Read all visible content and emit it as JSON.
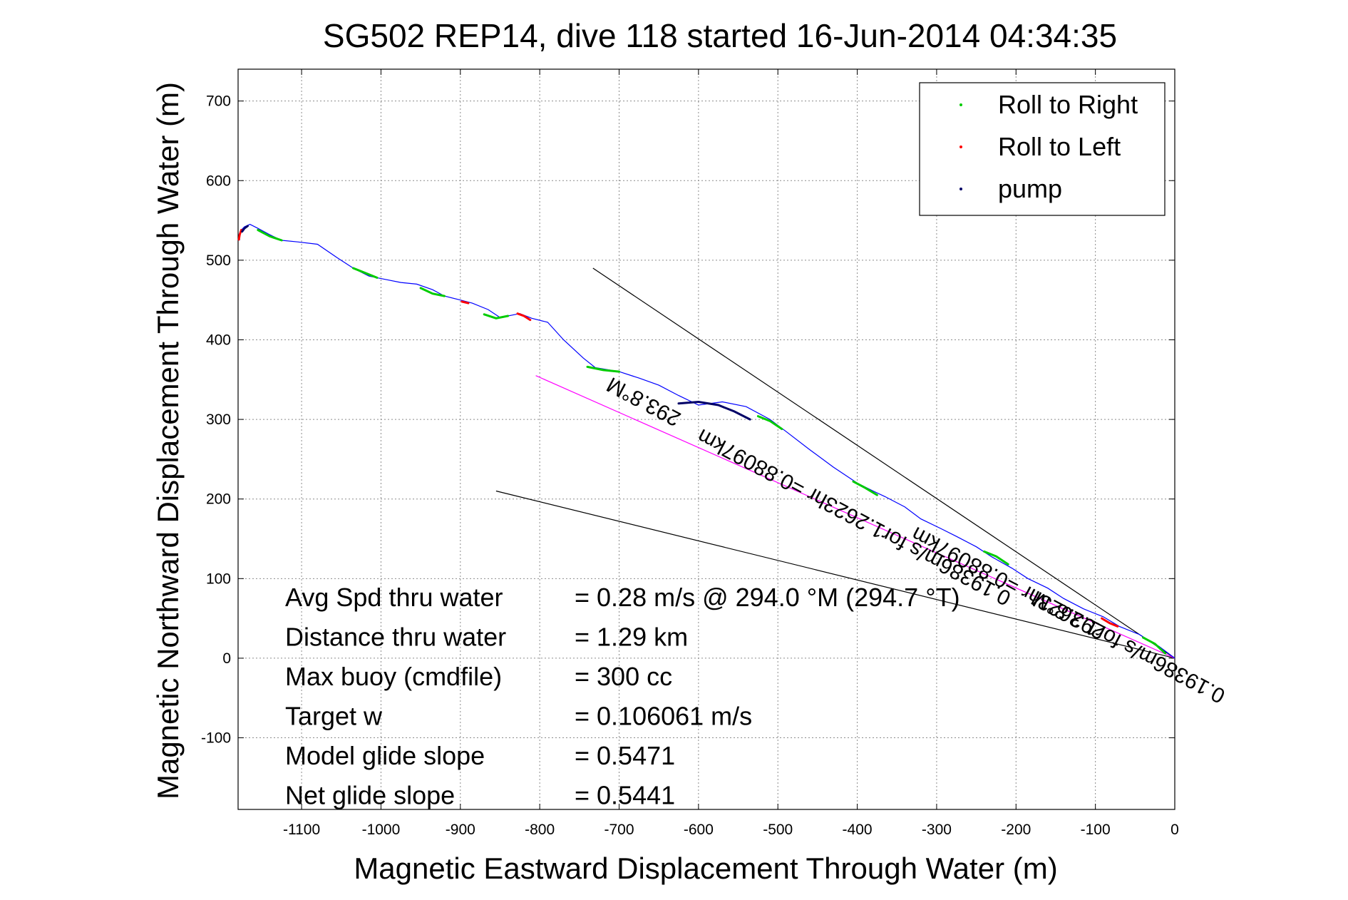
{
  "chart_data": {
    "type": "line",
    "title": "SG502 REP14, dive 118 started 16-Jun-2014 04:34:35",
    "xlabel": "Magnetic Eastward Displacement Through Water (m)",
    "ylabel": "Magnetic Northward Displacement Through Water (m)",
    "xlim": [
      -1180,
      0
    ],
    "ylim": [
      -190,
      740
    ],
    "xticks": [
      -1100,
      -1000,
      -900,
      -800,
      -700,
      -600,
      -500,
      -400,
      -300,
      -200,
      -100,
      0
    ],
    "yticks": [
      -100,
      0,
      100,
      200,
      300,
      400,
      500,
      600,
      700
    ],
    "grid": true,
    "legend_position": "top-right",
    "legend": [
      {
        "label": "Roll to Right",
        "color": "#00cc00"
      },
      {
        "label": "Roll to Left",
        "color": "#ff0000"
      },
      {
        "label": "pump",
        "color": "#000066"
      }
    ],
    "track": {
      "color": "#0000ff",
      "x": [
        0,
        -20,
        -45,
        -70,
        -90,
        -115,
        -140,
        -160,
        -185,
        -205,
        -230,
        -250,
        -275,
        -295,
        -320,
        -340,
        -365,
        -380,
        -400,
        -430,
        -460,
        -490,
        -510,
        -540,
        -570,
        -600,
        -625,
        -650,
        -675,
        -700,
        -730,
        -745,
        -770,
        -790,
        -810,
        -825,
        -850,
        -865,
        -885,
        -900,
        -920,
        -935,
        -955,
        -975,
        -995,
        -1015,
        -1035,
        -1055,
        -1080,
        -1105,
        -1125,
        -1140,
        -1155,
        -1165,
        -1172,
        -1176,
        -1179,
        -1178
      ],
      "y": [
        0,
        15,
        30,
        40,
        52,
        62,
        75,
        88,
        100,
        113,
        127,
        140,
        153,
        163,
        175,
        190,
        203,
        210,
        220,
        240,
        262,
        285,
        300,
        316,
        322,
        318,
        330,
        343,
        352,
        360,
        365,
        377,
        400,
        422,
        427,
        433,
        428,
        438,
        446,
        450,
        455,
        463,
        470,
        472,
        476,
        480,
        490,
        503,
        520,
        523,
        525,
        532,
        540,
        545,
        542,
        538,
        532,
        525
      ]
    },
    "roll_right_segments": [
      {
        "x": [
          -12,
          -25,
          -40
        ],
        "y": [
          6,
          18,
          26
        ]
      },
      {
        "x": [
          -210,
          -225,
          -240
        ],
        "y": [
          118,
          128,
          134
        ]
      },
      {
        "x": [
          -375,
          -390,
          -405
        ],
        "y": [
          205,
          214,
          222
        ]
      },
      {
        "x": [
          -495,
          -510,
          -525
        ],
        "y": [
          288,
          298,
          304
        ]
      },
      {
        "x": [
          -700,
          -720,
          -740
        ],
        "y": [
          360,
          362,
          366
        ]
      },
      {
        "x": [
          -840,
          -855,
          -870
        ],
        "y": [
          430,
          427,
          432
        ]
      },
      {
        "x": [
          -920,
          -935,
          -950
        ],
        "y": [
          455,
          458,
          465
        ]
      },
      {
        "x": [
          -1005,
          -1020,
          -1035
        ],
        "y": [
          478,
          484,
          490
        ]
      },
      {
        "x": [
          -1125,
          -1140,
          -1155
        ],
        "y": [
          525,
          530,
          538
        ]
      }
    ],
    "roll_left_segments": [
      {
        "x": [
          -72,
          -82,
          -92
        ],
        "y": [
          40,
          44,
          50
        ]
      },
      {
        "x": [
          -812,
          -820,
          -828
        ],
        "y": [
          425,
          430,
          433
        ]
      },
      {
        "x": [
          -890,
          -898
        ],
        "y": [
          446,
          448
        ]
      },
      {
        "x": [
          -1176,
          -1178,
          -1179
        ],
        "y": [
          538,
          532,
          526
        ]
      }
    ],
    "pump_segments": [
      {
        "x": [
          -535,
          -555,
          -575,
          -600,
          -625
        ],
        "y": [
          300,
          310,
          318,
          322,
          320
        ]
      },
      {
        "x": [
          -1168,
          -1172,
          -1175
        ],
        "y": [
          543,
          540,
          536
        ]
      }
    ],
    "reference_lines": [
      {
        "color": "#000000",
        "x": [
          0,
          -733
        ],
        "y": [
          0,
          490
        ]
      },
      {
        "color": "#000000",
        "x": [
          0,
          -855
        ],
        "y": [
          0,
          210
        ]
      },
      {
        "color": "#ff00ff",
        "x": [
          0,
          -805
        ],
        "y": [
          0,
          355
        ]
      }
    ],
    "line_labels": [
      {
        "text": "293.8°M",
        "x": -665,
        "y": 330,
        "angle": 28
      },
      {
        "text": "0.19386m/s for1.2623hr =0.88097km",
        "x": -400,
        "y": 185,
        "angle": 28
      },
      {
        "text": "293.8°M",
        "x": -130,
        "y": 62,
        "angle": 28
      },
      {
        "text": "0.19386m/s for1.2623hr =0.88097km",
        "x": -130,
        "y": 62,
        "angle": 28
      }
    ],
    "annotations": [
      {
        "label": "Avg Spd thru water",
        "value": "=  0.28 m/s @ 294.0 °M (294.7 °T)"
      },
      {
        "label": "Distance thru water",
        "value": "=  1.29 km"
      },
      {
        "label": "Max buoy (cmdfile)",
        "value": "= 300 cc"
      },
      {
        "label": "Target w",
        "value": "= 0.106061 m/s"
      },
      {
        "label": "Model glide slope",
        "value": "= 0.5471"
      },
      {
        "label": "Net glide slope",
        "value": "= 0.5441"
      }
    ]
  }
}
